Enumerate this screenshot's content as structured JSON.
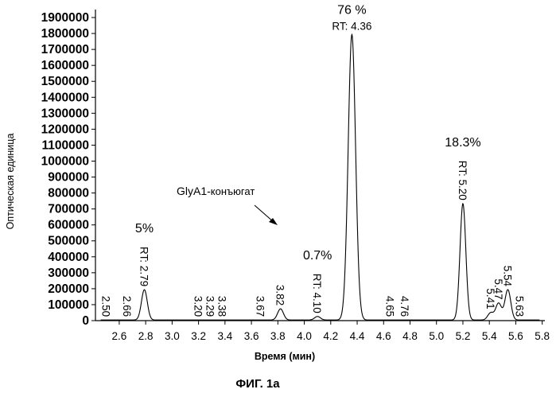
{
  "chart_data": {
    "type": "line",
    "xlabel": "Время (мин)",
    "ylabel": "Оптическая единица",
    "caption": "ФИГ. 1а",
    "xlim": [
      2.42,
      5.82
    ],
    "ylim": [
      0,
      1950000
    ],
    "x_ticks": [
      "2.6",
      "2.8",
      "3.0",
      "3.2",
      "3.4",
      "3.6",
      "3.8",
      "4.0",
      "4.2",
      "4.4",
      "4.6",
      "4.8",
      "5.0",
      "5.2",
      "5.4",
      "5.6",
      "5.8"
    ],
    "y_ticks": [
      "0",
      "100000",
      "200000",
      "300000",
      "400000",
      "500000",
      "600000",
      "700000",
      "800000",
      "900000",
      "1000000",
      "1100000",
      "1200000",
      "1300000",
      "1400000",
      "1500000",
      "1600000",
      "1700000",
      "1800000",
      "1900000"
    ],
    "baseline": 4000,
    "peaks": [
      {
        "rt": 2.5,
        "height": 0
      },
      {
        "rt": 2.66,
        "height": 0
      },
      {
        "rt": 2.79,
        "height": 190000
      },
      {
        "rt": 3.2,
        "height": 0
      },
      {
        "rt": 3.29,
        "height": 0
      },
      {
        "rt": 3.38,
        "height": 0
      },
      {
        "rt": 3.67,
        "height": 0
      },
      {
        "rt": 3.82,
        "height": 70000
      },
      {
        "rt": 4.1,
        "height": 22000
      },
      {
        "rt": 4.36,
        "height": 1790000
      },
      {
        "rt": 4.65,
        "height": 0
      },
      {
        "rt": 4.76,
        "height": 0
      },
      {
        "rt": 5.2,
        "height": 730000
      },
      {
        "rt": 5.41,
        "height": 45000
      },
      {
        "rt": 5.47,
        "height": 105000
      },
      {
        "rt": 5.54,
        "height": 190000
      },
      {
        "rt": 5.63,
        "height": 0
      }
    ],
    "peak_labels": [
      {
        "text": "2.50",
        "rt": 2.5
      },
      {
        "text": "2.66",
        "rt": 2.66
      },
      {
        "text": "RT: 2.79",
        "rt": 2.79
      },
      {
        "text": "3.20",
        "rt": 3.2
      },
      {
        "text": "3.29",
        "rt": 3.29
      },
      {
        "text": "3.38",
        "rt": 3.38
      },
      {
        "text": "3.67",
        "rt": 3.67
      },
      {
        "text": "3.82",
        "rt": 3.82
      },
      {
        "text": "RT: 4.10",
        "rt": 4.1
      },
      {
        "text": "RT: 4.36",
        "rt": 4.36
      },
      {
        "text": "4.65",
        "rt": 4.65
      },
      {
        "text": "4.76",
        "rt": 4.76
      },
      {
        "text": "RT: 5.20",
        "rt": 5.2
      },
      {
        "text": "5.41",
        "rt": 5.41
      },
      {
        "text": "5.47",
        "rt": 5.47
      },
      {
        "text": "5.54",
        "rt": 5.54
      },
      {
        "text": "5.63",
        "rt": 5.63
      }
    ],
    "percent_labels": [
      {
        "text": "5%",
        "rt": 2.79
      },
      {
        "text": "0.7%",
        "rt": 4.1
      },
      {
        "text": "76 %",
        "rt": 4.36
      },
      {
        "text": "18.3%",
        "rt": 5.2
      }
    ],
    "annotation": {
      "text_prefix": "GlyA1-",
      "text_suffix": "конъюгат"
    }
  }
}
